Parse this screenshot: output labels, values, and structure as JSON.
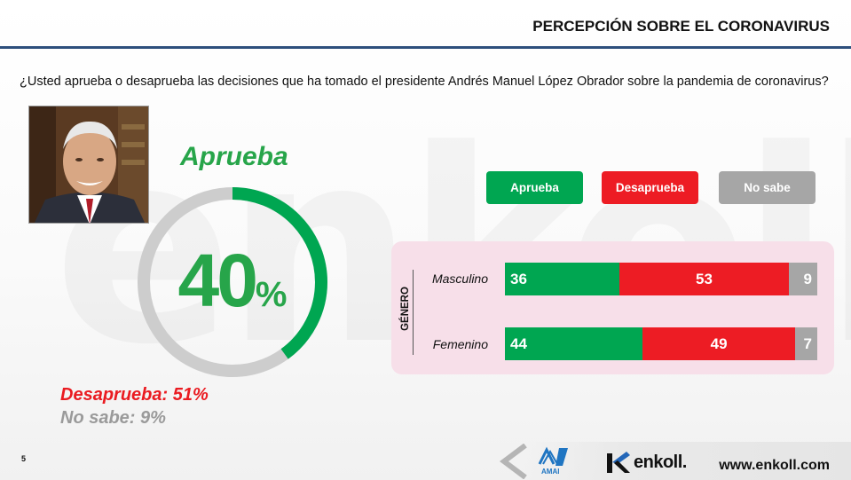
{
  "header": {
    "title": "PERCEPCIÓN SOBRE EL CORONAVIRUS"
  },
  "question": "¿Usted aprueba o desaprueba las decisiones que ha tomado el presidente Andrés Manuel López Obrador sobre la pandemia de coronavirus?",
  "watermark": "enkoll",
  "summary": {
    "approve_label": "Aprueba",
    "approve_value": "40",
    "percent_sign": "%",
    "disapprove_text": "Desaprueba: 51%",
    "unknown_text": "No sabe: 9%"
  },
  "legend": [
    {
      "label": "Aprueba",
      "color": "#00a651"
    },
    {
      "label": "Desaprueba",
      "color": "#ed1c24"
    },
    {
      "label": "No sabe",
      "color": "#a6a6a6"
    }
  ],
  "colors": {
    "approve": "#00a651",
    "disapprove": "#ed1c24",
    "unknown": "#a6a6a6",
    "approve_text": "#27a54a",
    "ring_track": "#cdcdcd",
    "panel": "#f7dfe9"
  },
  "chart_data": [
    {
      "type": "pie",
      "categories": [
        "Aprueba",
        "Desaprueba",
        "No sabe"
      ],
      "values": [
        40,
        51,
        9
      ]
    },
    {
      "type": "bar",
      "orientation": "horizontal",
      "stacked": true,
      "axis_label": "GÉNERO",
      "categories": [
        "Masculino",
        "Femenino"
      ],
      "series": [
        {
          "name": "Aprueba",
          "values": [
            36,
            44
          ]
        },
        {
          "name": "Desaprueba",
          "values": [
            53,
            49
          ]
        },
        {
          "name": "No sabe",
          "values": [
            9,
            7
          ]
        }
      ]
    }
  ],
  "footer": {
    "page_number": "5",
    "brand": "enkoll.",
    "website": "www.enkoll.com",
    "association_logo_text": "AMAI"
  }
}
